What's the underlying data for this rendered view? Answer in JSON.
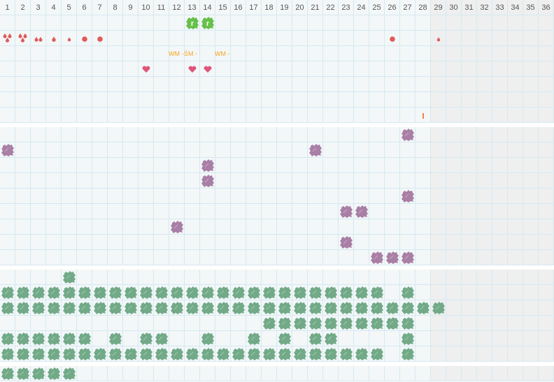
{
  "days": [
    1,
    2,
    3,
    4,
    5,
    6,
    7,
    8,
    9,
    10,
    11,
    12,
    13,
    14,
    15,
    16,
    17,
    18,
    19,
    20,
    21,
    22,
    23,
    24,
    25,
    26,
    27,
    28,
    29,
    30,
    31,
    32,
    33,
    34,
    35,
    36
  ],
  "month_last_day": 28,
  "colors": {
    "drop": "#e05a5a",
    "heart": "#e0557a",
    "label": "#f5a623",
    "tick": "#f08050",
    "blob_green_bright": "#66c04a",
    "blob_purple": "#a97fa6",
    "blob_green": "#72aa88"
  },
  "sections": [
    {
      "rows": [
        {
          "marks": [
            {
              "day": 13,
              "type": "blob-r",
              "text": "r"
            },
            {
              "day": 14,
              "type": "blob-r",
              "text": "r"
            }
          ]
        },
        {
          "marks": [
            {
              "day": 1,
              "type": "drops3"
            },
            {
              "day": 2,
              "type": "drops3"
            },
            {
              "day": 3,
              "type": "drops2"
            },
            {
              "day": 4,
              "type": "drop"
            },
            {
              "day": 5,
              "type": "drop-small"
            },
            {
              "day": 6,
              "type": "dot"
            },
            {
              "day": 7,
              "type": "dot"
            },
            {
              "day": 26,
              "type": "dot"
            },
            {
              "day": 29,
              "type": "drop-small"
            }
          ]
        },
        {
          "marks": [
            {
              "day": 12,
              "type": "text",
              "text": "WM -"
            },
            {
              "day": 13,
              "type": "text",
              "text": "ŚM -"
            },
            {
              "day": 15,
              "type": "text",
              "text": "WM -"
            }
          ]
        },
        {
          "marks": [
            {
              "day": 10,
              "type": "heart"
            },
            {
              "day": 13,
              "type": "heart"
            },
            {
              "day": 14,
              "type": "heart"
            }
          ]
        },
        {
          "marks": []
        },
        {
          "marks": []
        },
        {
          "marks": [
            {
              "day": 28,
              "type": "tick"
            }
          ]
        }
      ]
    },
    {
      "rows": [
        {
          "marks": [
            {
              "day": 27,
              "type": "blob-purple"
            }
          ]
        },
        {
          "marks": [
            {
              "day": 1,
              "type": "blob-purple"
            },
            {
              "day": 21,
              "type": "blob-purple"
            }
          ]
        },
        {
          "marks": [
            {
              "day": 14,
              "type": "blob-purple"
            }
          ]
        },
        {
          "marks": [
            {
              "day": 14,
              "type": "blob-purple"
            }
          ]
        },
        {
          "marks": [
            {
              "day": 27,
              "type": "blob-purple"
            }
          ]
        },
        {
          "marks": [
            {
              "day": 23,
              "type": "blob-purple"
            },
            {
              "day": 24,
              "type": "blob-purple"
            }
          ]
        },
        {
          "marks": [
            {
              "day": 12,
              "type": "blob-purple"
            }
          ]
        },
        {
          "marks": [
            {
              "day": 23,
              "type": "blob-purple"
            }
          ]
        },
        {
          "marks": [
            {
              "day": 25,
              "type": "blob-purple"
            },
            {
              "day": 26,
              "type": "blob-purple"
            },
            {
              "day": 27,
              "type": "blob-purple"
            }
          ]
        }
      ]
    },
    {
      "rows": [
        {
          "green_days": [
            5
          ]
        },
        {
          "green_days": [
            1,
            2,
            3,
            4,
            5,
            6,
            7,
            8,
            9,
            10,
            11,
            12,
            13,
            14,
            15,
            16,
            17,
            18,
            19,
            20,
            21,
            22,
            23,
            24,
            25,
            27
          ]
        },
        {
          "green_days": [
            1,
            2,
            3,
            4,
            5,
            6,
            7,
            8,
            9,
            10,
            11,
            12,
            13,
            14,
            15,
            16,
            17,
            18,
            19,
            20,
            21,
            22,
            23,
            24,
            25,
            26,
            27,
            28,
            29
          ]
        },
        {
          "green_days": [
            18,
            19,
            20,
            21,
            22,
            23,
            24,
            25,
            26,
            27
          ]
        },
        {
          "green_days": [
            1,
            2,
            3,
            4,
            5,
            6,
            8,
            10,
            11,
            14,
            17,
            19,
            21,
            22,
            27
          ]
        },
        {
          "green_days": [
            1,
            2,
            3,
            4,
            5,
            6,
            7,
            8,
            9,
            10,
            11,
            12,
            13,
            14,
            15,
            16,
            17,
            18,
            19,
            20,
            21,
            22,
            23,
            24,
            25,
            27
          ]
        }
      ]
    },
    {
      "rows": [
        {
          "green_days": [
            1,
            2,
            3,
            4,
            5
          ]
        }
      ]
    }
  ]
}
